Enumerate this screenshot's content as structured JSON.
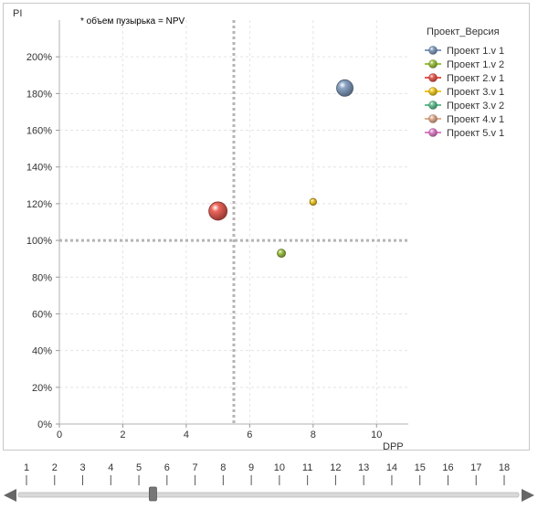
{
  "chart_data": {
    "type": "scatter",
    "subtype": "bubble",
    "annotation": "* объем пузырька = NPV",
    "xlabel": "DPP",
    "ylabel": "PI",
    "xlim": [
      0,
      11
    ],
    "ylim": [
      0,
      2.2
    ],
    "x_ticks": [
      "0",
      "2",
      "4",
      "6",
      "8",
      "10"
    ],
    "y_ticks": [
      "0%",
      "20%",
      "40%",
      "60%",
      "80%",
      "100%",
      "120%",
      "140%",
      "160%",
      "180%",
      "200%"
    ],
    "grid": true,
    "reference_lines": {
      "x": 5.5,
      "y": 1.0
    },
    "legend_title": "Проект_Версия",
    "legend_position": "top-right",
    "series": [
      {
        "name": "Проект 1.v 1",
        "color": "#7f9bbf",
        "points": [
          {
            "x": 9.0,
            "y": 1.83,
            "size": 9
          }
        ]
      },
      {
        "name": "Проект 1.v 2",
        "color": "#9bc23c",
        "points": [
          {
            "x": 7.0,
            "y": 0.93,
            "size": 4.5
          }
        ]
      },
      {
        "name": "Проект 2.v 1",
        "color": "#e8564b",
        "points": [
          {
            "x": 5.0,
            "y": 1.16,
            "size": 10
          }
        ]
      },
      {
        "name": "Проект 3.v 1",
        "color": "#f2c81e",
        "points": [
          {
            "x": 8.0,
            "y": 1.21,
            "size": 3.8
          }
        ]
      },
      {
        "name": "Проект 3.v 2",
        "color": "#5fbf8f",
        "points": []
      },
      {
        "name": "Проект 4.v 1",
        "color": "#e2ad8c",
        "points": []
      },
      {
        "name": "Проект 5.v 1",
        "color": "#e07cc8",
        "points": []
      }
    ]
  },
  "slider": {
    "labels": [
      "1",
      "2",
      "3",
      "4",
      "5",
      "6",
      "7",
      "8",
      "9",
      "10",
      "11",
      "12",
      "13",
      "14",
      "15",
      "16",
      "17",
      "18"
    ],
    "value": 5.5,
    "min": 1,
    "max": 18
  }
}
